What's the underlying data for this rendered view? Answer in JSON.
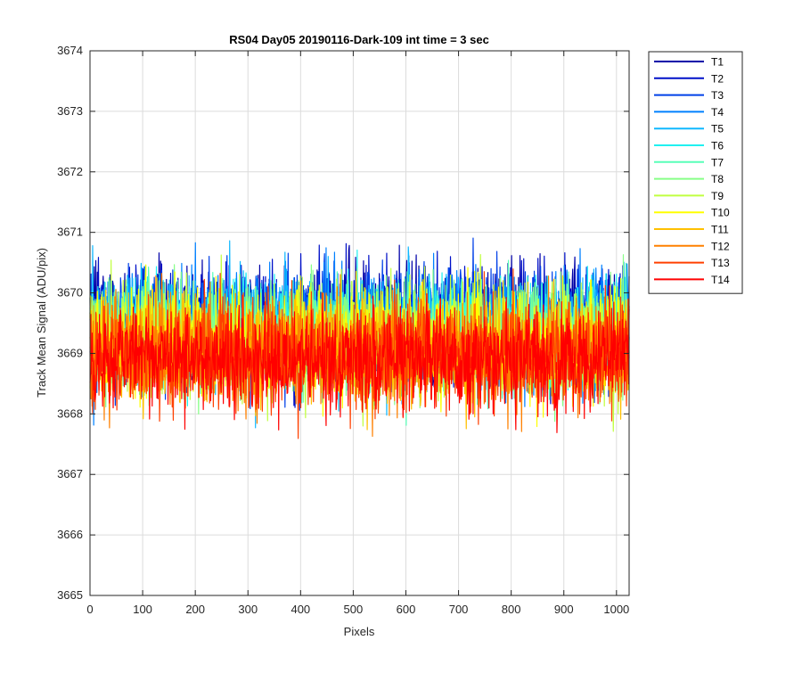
{
  "chart_data": {
    "type": "line",
    "title": "RS04 Day05 20190116-Dark-109 int time = 3 sec",
    "xlabel": "Pixels",
    "ylabel": "Track Mean Signal (ADU/pix)",
    "xlim": [
      0,
      1024
    ],
    "ylim": [
      3665,
      3674
    ],
    "xticks": [
      0,
      100,
      200,
      300,
      400,
      500,
      600,
      700,
      800,
      900,
      1000
    ],
    "yticks": [
      3665,
      3666,
      3667,
      3668,
      3669,
      3670,
      3671,
      3672,
      3673,
      3674
    ],
    "grid": true,
    "legend_location": "outside-top-right",
    "n_points_per_series": 1024,
    "series": [
      {
        "name": "T1",
        "color": "#0000a8",
        "mean": 3669.5,
        "spread": 0.85
      },
      {
        "name": "T2",
        "color": "#0010c8",
        "mean": 3669.5,
        "spread": 0.85
      },
      {
        "name": "T3",
        "color": "#0040e8",
        "mean": 3669.45,
        "spread": 0.85
      },
      {
        "name": "T4",
        "color": "#0080ff",
        "mean": 3669.4,
        "spread": 0.85
      },
      {
        "name": "T5",
        "color": "#10b8ff",
        "mean": 3669.4,
        "spread": 0.85
      },
      {
        "name": "T6",
        "color": "#20f0f0",
        "mean": 3669.35,
        "spread": 0.8
      },
      {
        "name": "T7",
        "color": "#58ffb8",
        "mean": 3669.3,
        "spread": 0.8
      },
      {
        "name": "T8",
        "color": "#88ff88",
        "mean": 3669.25,
        "spread": 0.8
      },
      {
        "name": "T9",
        "color": "#c0ff40",
        "mean": 3669.2,
        "spread": 0.8
      },
      {
        "name": "T10",
        "color": "#ffff00",
        "mean": 3669.15,
        "spread": 0.8
      },
      {
        "name": "T11",
        "color": "#ffc000",
        "mean": 3669.1,
        "spread": 0.8
      },
      {
        "name": "T12",
        "color": "#ff8000",
        "mean": 3669.0,
        "spread": 0.8
      },
      {
        "name": "T13",
        "color": "#ff4000",
        "mean": 3668.95,
        "spread": 0.8
      },
      {
        "name": "T14",
        "color": "#ff0000",
        "mean": 3668.9,
        "spread": 0.75
      }
    ]
  }
}
